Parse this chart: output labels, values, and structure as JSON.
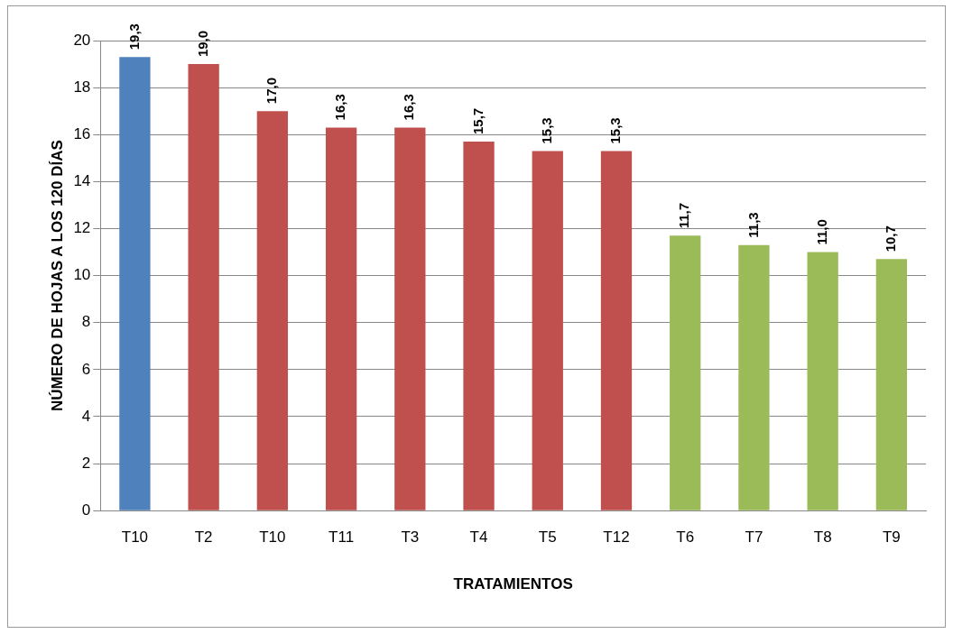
{
  "chart_data": {
    "type": "bar",
    "xlabel": "TRATAMIENTOS",
    "ylabel": "NÚMERO DE HOJAS A LOS 120 DÍAS",
    "categories": [
      "T10",
      "T2",
      "T10",
      "T11",
      "T3",
      "T4",
      "T5",
      "T12",
      "T6",
      "T7",
      "T8",
      "T9"
    ],
    "values": [
      19.3,
      19.0,
      17.0,
      16.3,
      16.3,
      15.7,
      15.3,
      15.3,
      11.7,
      11.3,
      11.0,
      10.7
    ],
    "value_labels": [
      "19,3",
      "19,0",
      "17,0",
      "16,3",
      "16,3",
      "15,7",
      "15,3",
      "15,3",
      "11,7",
      "11,3",
      "11,0",
      "10,7"
    ],
    "colors": [
      "#4f81bd",
      "#c0504d",
      "#c0504d",
      "#c0504d",
      "#c0504d",
      "#c0504d",
      "#c0504d",
      "#c0504d",
      "#9bbb59",
      "#9bbb59",
      "#9bbb59",
      "#9bbb59"
    ],
    "ylim": [
      0,
      20
    ],
    "yticks": [
      0,
      2,
      4,
      6,
      8,
      10,
      12,
      14,
      16,
      18,
      20
    ],
    "grid": "y",
    "legend": false
  }
}
